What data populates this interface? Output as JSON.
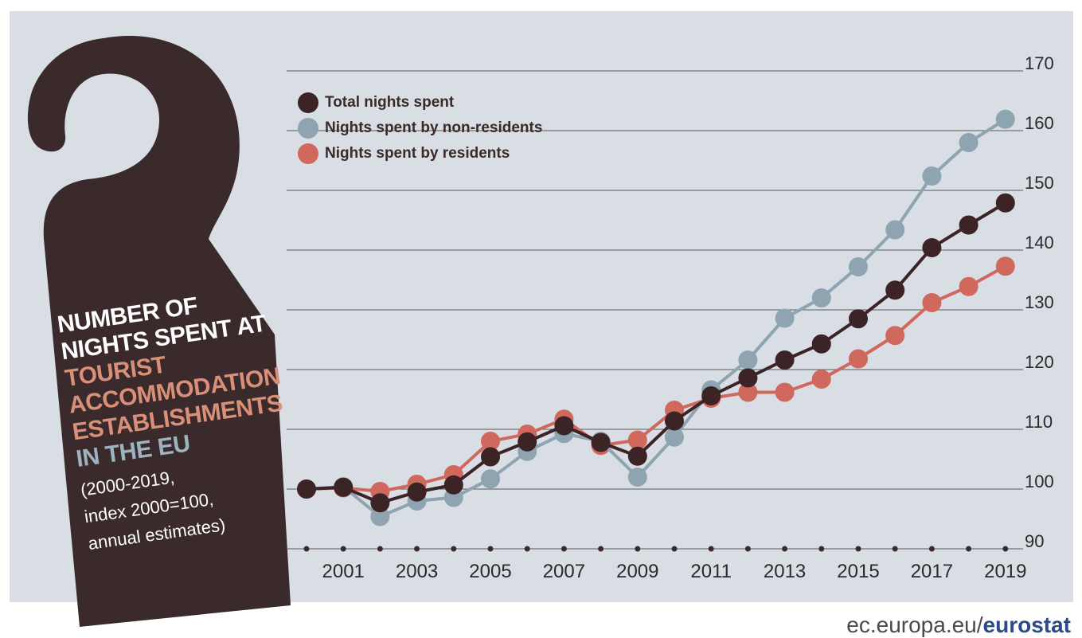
{
  "title": {
    "line1": "NUMBER OF",
    "line2": "NIGHTS SPENT AT",
    "line3": "TOURIST",
    "line4": "ACCOMMODATION",
    "line5": "ESTABLISHMENTS",
    "line6": "IN THE EU",
    "sub1": "(2000-2019,",
    "sub2": "index 2000=100,",
    "sub3": "annual estimates)"
  },
  "footer": {
    "prefix": "ec.europa.eu/",
    "brand": "eurostat"
  },
  "colors": {
    "background": "#d8dee3",
    "total": "#3b2326",
    "non_residents": "#8ea4b1",
    "residents": "#d0685e",
    "hanger": "#3a2a2b"
  },
  "chart_data": {
    "type": "line",
    "x": [
      2000,
      2001,
      2002,
      2003,
      2004,
      2005,
      2006,
      2007,
      2008,
      2009,
      2010,
      2011,
      2012,
      2013,
      2014,
      2015,
      2016,
      2017,
      2018,
      2019
    ],
    "x_tick_labels": [
      "2001",
      "2003",
      "2005",
      "2007",
      "2009",
      "2011",
      "2013",
      "2015",
      "2017",
      "2019"
    ],
    "y_ticks": [
      90,
      100,
      110,
      120,
      130,
      140,
      150,
      160,
      170
    ],
    "ylim": [
      90,
      170
    ],
    "grid": true,
    "legend_position": "top-left",
    "series": [
      {
        "name": "Total nights spent",
        "color": "#3b2326",
        "values": [
          100.0,
          100.3,
          97.7,
          99.5,
          100.7,
          105.4,
          107.9,
          110.6,
          107.8,
          105.5,
          111.4,
          115.6,
          118.6,
          121.6,
          124.3,
          128.5,
          133.3,
          140.4,
          144.2,
          147.9
        ]
      },
      {
        "name": "Nights spent by non-residents",
        "color": "#8ea4b1",
        "values": [
          100.0,
          100.4,
          95.4,
          98.0,
          98.6,
          101.7,
          106.3,
          109.3,
          108.0,
          102.0,
          108.7,
          116.6,
          121.6,
          128.6,
          132.0,
          137.2,
          143.4,
          152.4,
          158.0,
          161.9
        ]
      },
      {
        "name": "Nights spent by residents",
        "color": "#d0685e",
        "values": [
          100.0,
          100.2,
          99.6,
          100.8,
          102.4,
          108.0,
          109.2,
          111.7,
          107.3,
          108.2,
          113.2,
          115.2,
          116.2,
          116.2,
          118.4,
          121.8,
          125.7,
          131.2,
          133.9,
          137.3
        ]
      }
    ]
  }
}
